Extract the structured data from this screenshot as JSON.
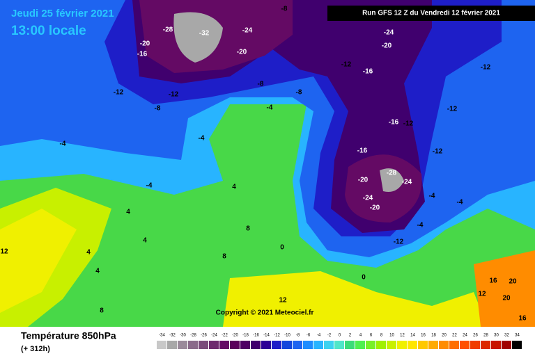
{
  "header": {
    "date": "Jeudi 25 février 2021",
    "time": "13:00 locale",
    "run": "Run GFS 12 Z du Vendredi 12 février 2021"
  },
  "copyright": "Copyright © 2021 Meteociel.fr",
  "footer": {
    "title": "Température 850hPa",
    "lead": "(+ 312h)"
  },
  "legend": {
    "values": [
      -34,
      -32,
      -30,
      -28,
      -26,
      -24,
      -22,
      -20,
      -18,
      -16,
      -14,
      -12,
      -10,
      -8,
      -6,
      -4,
      -2,
      0,
      2,
      4,
      6,
      8,
      10,
      12,
      14,
      16,
      18,
      20,
      22,
      24,
      26,
      28,
      30,
      32,
      34
    ],
    "colors": [
      "#c8c8c8",
      "#a8a8a8",
      "#9a8a9a",
      "#8a6a8a",
      "#7a4a7a",
      "#6e2a6e",
      "#640a64",
      "#5a005a",
      "#4e0064",
      "#40006e",
      "#2d0096",
      "#1e1ec8",
      "#1446dc",
      "#1e64f0",
      "#1e8cff",
      "#28b4ff",
      "#3cd2f0",
      "#50e6c8",
      "#3cdc78",
      "#50f050",
      "#78f028",
      "#a0f000",
      "#c8f000",
      "#f0f000",
      "#ffe600",
      "#ffc800",
      "#ffaa00",
      "#ff8c00",
      "#ff6e00",
      "#ff5000",
      "#f03c00",
      "#dc2800",
      "#c81400",
      "#a00000",
      "#000000"
    ]
  },
  "map_labels": [
    -16,
    -20,
    -28,
    -32,
    -24,
    -20,
    -8,
    -24,
    -20,
    -12,
    -16,
    -12,
    -12,
    -12,
    -8,
    -8,
    -8,
    -4,
    -12,
    -16,
    -12,
    -4,
    -4,
    -16,
    -12,
    -28,
    -20,
    -24,
    -24,
    -20,
    -4,
    4,
    4,
    4,
    8,
    0,
    -12,
    -4,
    0,
    4,
    12,
    4,
    8,
    8,
    12,
    12,
    16,
    20,
    20,
    16,
    -4,
    -4
  ]
}
